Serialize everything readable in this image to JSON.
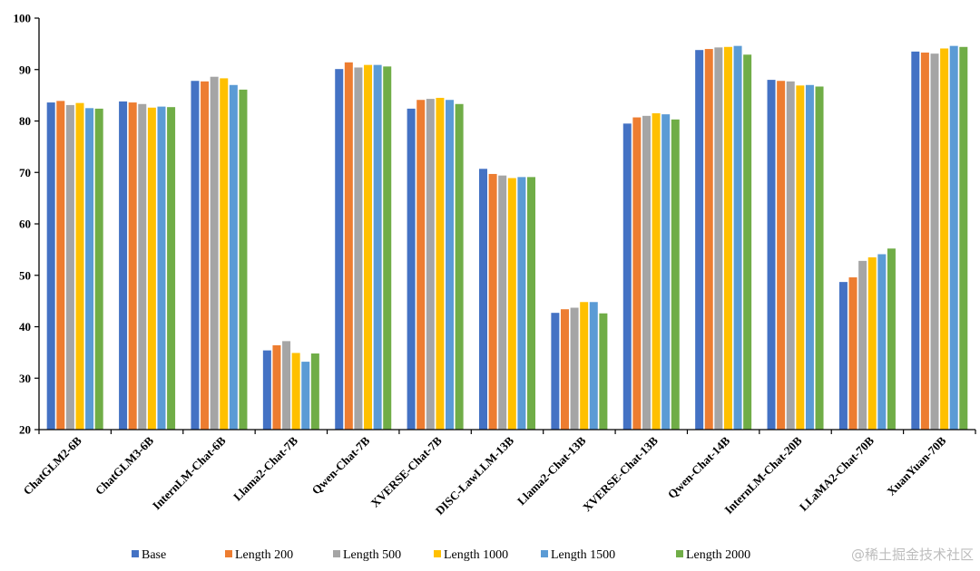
{
  "chart_data": {
    "type": "bar",
    "title": "",
    "xlabel": "",
    "ylabel": "",
    "ylim": [
      20,
      100
    ],
    "yticks": [
      20,
      30,
      40,
      50,
      60,
      70,
      80,
      90,
      100
    ],
    "grid": false,
    "legend_position": "bottom",
    "categories": [
      "ChatGLM2-6B",
      "ChatGLM3-6B",
      "InternLM-Chat-6B",
      "Llama2-Chat-7B",
      "Qwen-Chat-7B",
      "XVERSE-Chat-7B",
      "DISC-LawLLM-13B",
      "Llama2-Chat-13B",
      "XVERSE-Chat-13B",
      "Qwen-Chat-14B",
      "InternLM-Chat-20B",
      "LLaMA2-Chat-70B",
      "XuanYuan-70B"
    ],
    "series": [
      {
        "name": "Base",
        "color": "#4472c4",
        "values": [
          83.6,
          83.8,
          87.8,
          35.4,
          90.1,
          82.4,
          70.7,
          42.7,
          79.5,
          93.8,
          88.0,
          48.7,
          93.5
        ]
      },
      {
        "name": "Length 200",
        "color": "#ed7d31",
        "values": [
          83.9,
          83.6,
          87.7,
          36.4,
          91.4,
          84.1,
          69.7,
          43.4,
          80.7,
          94.0,
          87.8,
          49.6,
          93.3
        ]
      },
      {
        "name": "Length 500",
        "color": "#a5a5a5",
        "values": [
          83.1,
          83.3,
          88.6,
          37.2,
          90.4,
          84.3,
          69.4,
          43.7,
          81.0,
          94.3,
          87.7,
          52.8,
          93.1
        ]
      },
      {
        "name": "Length 1000",
        "color": "#ffc000",
        "values": [
          83.5,
          82.6,
          88.3,
          34.9,
          90.9,
          84.5,
          68.9,
          44.8,
          81.5,
          94.4,
          86.9,
          53.5,
          94.1
        ]
      },
      {
        "name": "Length 1500",
        "color": "#5b9bd5",
        "values": [
          82.5,
          82.8,
          87.0,
          33.2,
          90.9,
          84.1,
          69.1,
          44.8,
          81.3,
          94.6,
          87.0,
          54.1,
          94.6
        ]
      },
      {
        "name": "Length 2000",
        "color": "#70ad47",
        "values": [
          82.4,
          82.7,
          86.1,
          34.8,
          90.6,
          83.3,
          69.1,
          42.6,
          80.3,
          92.9,
          86.7,
          55.2,
          94.4
        ]
      }
    ]
  },
  "watermark": "@稀土掘金技术社区"
}
